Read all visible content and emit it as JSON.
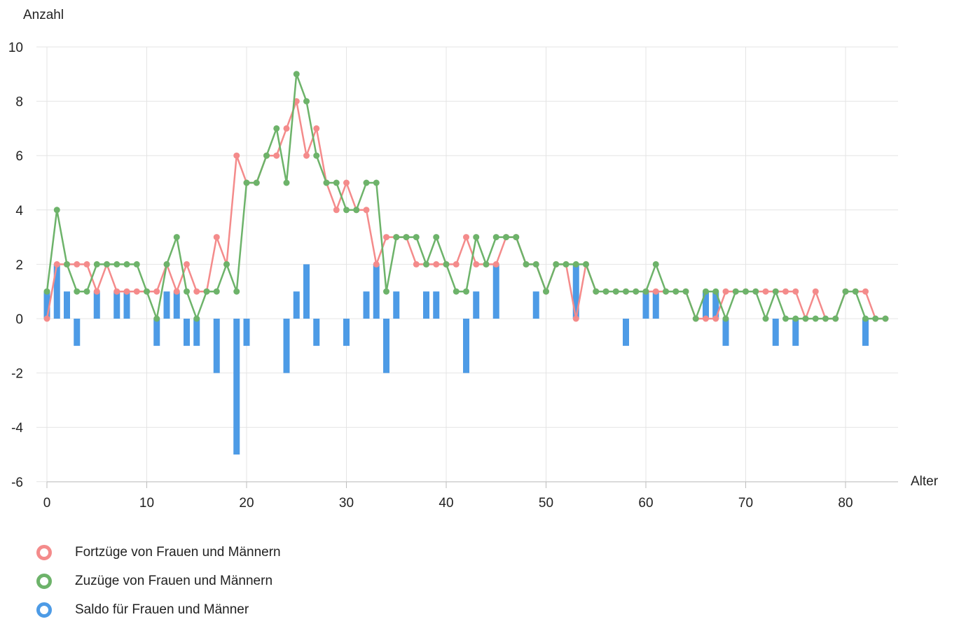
{
  "chart_data": {
    "type": "line",
    "xlabel": "Alter",
    "ylabel": "Anzahl",
    "xlim": [
      0,
      85
    ],
    "ylim": [
      -6,
      10
    ],
    "x_ticks": [
      "0",
      "10",
      "20",
      "30",
      "40",
      "50",
      "60",
      "70",
      "80"
    ],
    "y_ticks": [
      "10",
      "8",
      "6",
      "4",
      "2",
      "0",
      "-2",
      "-4",
      "-6"
    ],
    "grid": true,
    "legend_position": "bottom-left",
    "x": [
      0,
      1,
      2,
      3,
      4,
      5,
      6,
      7,
      8,
      9,
      10,
      11,
      12,
      13,
      14,
      15,
      16,
      17,
      18,
      19,
      20,
      21,
      22,
      23,
      24,
      25,
      26,
      27,
      28,
      29,
      30,
      31,
      32,
      33,
      34,
      35,
      36,
      37,
      38,
      39,
      40,
      41,
      42,
      43,
      44,
      45,
      46,
      47,
      48,
      49,
      50,
      51,
      52,
      53,
      54,
      55,
      56,
      57,
      58,
      59,
      60,
      61,
      62,
      63,
      64,
      65,
      66,
      67,
      68,
      69,
      70,
      71,
      72,
      73,
      74,
      75,
      76,
      77,
      78,
      79,
      80,
      81,
      82,
      83,
      84
    ],
    "series": [
      {
        "name": "Fortzüge von Frauen und Männern",
        "type": "line",
        "color": "#f48b8b",
        "values": [
          0,
          2,
          2,
          2,
          2,
          1,
          2,
          1,
          1,
          1,
          1,
          1,
          2,
          1,
          2,
          1,
          1,
          3,
          2,
          6,
          5,
          5,
          6,
          6,
          7,
          8,
          6,
          7,
          5,
          4,
          5,
          4,
          4,
          2,
          3,
          3,
          3,
          2,
          2,
          2,
          2,
          2,
          3,
          2,
          2,
          2,
          3,
          3,
          2,
          2,
          1,
          2,
          2,
          0,
          2,
          1,
          1,
          1,
          1,
          1,
          1,
          1,
          1,
          1,
          1,
          0,
          0,
          0,
          1,
          1,
          1,
          1,
          1,
          1,
          1,
          1,
          0,
          1,
          0,
          0,
          1,
          1,
          1,
          0,
          0
        ]
      },
      {
        "name": "Zuzüge von Frauen und Männern",
        "type": "line",
        "color": "#6db36a",
        "values": [
          1,
          4,
          2,
          1,
          1,
          2,
          2,
          2,
          2,
          2,
          1,
          0,
          2,
          3,
          1,
          0,
          1,
          1,
          2,
          1,
          5,
          5,
          6,
          7,
          5,
          9,
          8,
          6,
          5,
          5,
          4,
          4,
          5,
          5,
          1,
          3,
          3,
          3,
          2,
          3,
          2,
          1,
          1,
          3,
          2,
          3,
          3,
          3,
          2,
          2,
          1,
          2,
          2,
          2,
          2,
          1,
          1,
          1,
          1,
          1,
          1,
          2,
          1,
          1,
          1,
          0,
          1,
          1,
          0,
          1,
          1,
          1,
          0,
          1,
          0,
          0,
          0,
          0,
          0,
          0,
          1,
          1,
          0,
          0,
          0
        ]
      },
      {
        "name": "Saldo für Frauen und Männer",
        "type": "bar",
        "color": "#4d9be6",
        "values": [
          1,
          2,
          1,
          -1,
          0,
          1,
          0,
          1,
          1,
          0,
          0,
          -1,
          1,
          1,
          -1,
          -1,
          0,
          -2,
          0,
          -5,
          -1,
          0,
          0,
          0,
          -2,
          1,
          2,
          -1,
          0,
          0,
          -1,
          0,
          1,
          2,
          -2,
          1,
          0,
          0,
          1,
          1,
          0,
          0,
          -2,
          1,
          0,
          2,
          0,
          0,
          0,
          1,
          0,
          0,
          0,
          2,
          0,
          0,
          0,
          0,
          -1,
          0,
          1,
          1,
          0,
          0,
          0,
          0,
          1,
          1,
          -1,
          0,
          0,
          0,
          0,
          -1,
          0,
          -1,
          0,
          0,
          0,
          0,
          0,
          0,
          -1,
          0,
          0
        ]
      }
    ]
  }
}
